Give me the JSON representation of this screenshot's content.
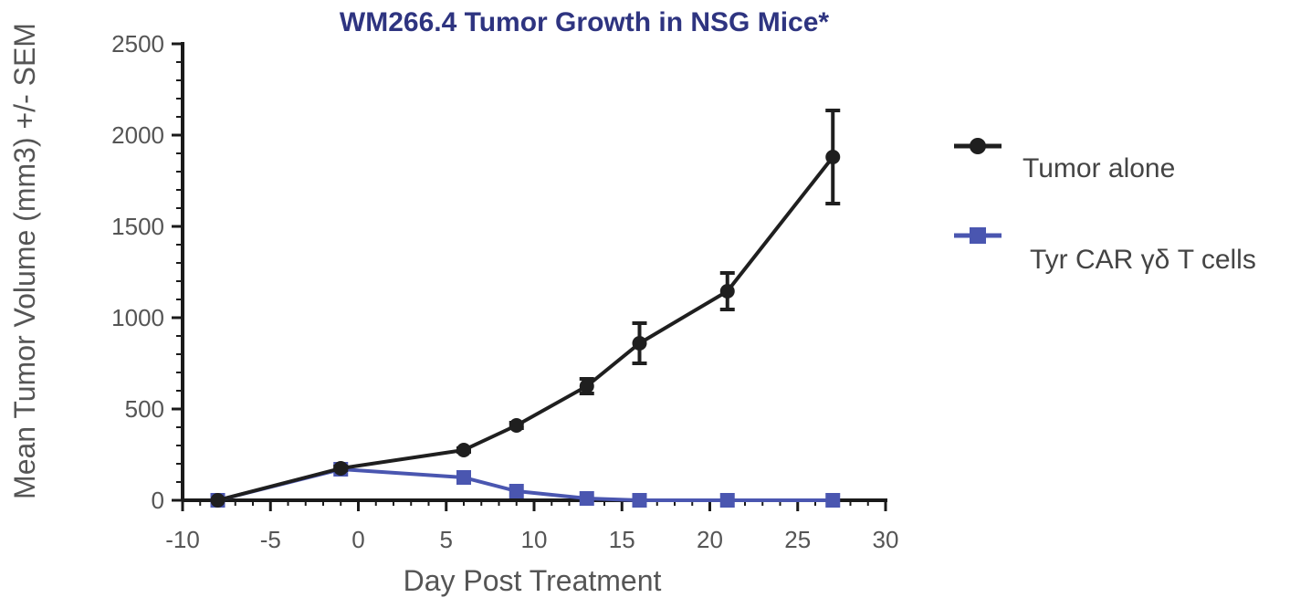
{
  "chart_data": {
    "type": "line",
    "title": "WM266.4 Tumor Growth in NSG Mice*",
    "xlabel": "Day Post Treatment",
    "ylabel": "Mean Tumor Volume (mm3) +/- SEM",
    "xlim": [
      -10,
      30
    ],
    "ylim": [
      0,
      2500
    ],
    "xticks": [
      "-10",
      "-5",
      "0",
      "5",
      "10",
      "15",
      "20",
      "25",
      "30"
    ],
    "yticks": [
      "0",
      "500",
      "1000",
      "1500",
      "2000",
      "2500"
    ],
    "grid": false,
    "legend_position": "right",
    "series": [
      {
        "name": "Tumor alone",
        "color": "#1f1f1f",
        "marker": "circle",
        "x": [
          -8,
          -1,
          6,
          9,
          13,
          16,
          21,
          27
        ],
        "y": [
          0,
          175,
          275,
          410,
          625,
          860,
          1145,
          1880
        ],
        "error": [
          0,
          10,
          10,
          15,
          40,
          110,
          100,
          255
        ]
      },
      {
        "name": "Tyr CAR γδ T cells",
        "color": "#4a56b0",
        "marker": "square",
        "x": [
          -8,
          -1,
          6,
          9,
          13,
          16,
          21,
          27
        ],
        "y": [
          0,
          170,
          125,
          50,
          10,
          0,
          0,
          0
        ],
        "error": [
          0,
          0,
          0,
          0,
          0,
          0,
          0,
          0
        ]
      }
    ]
  }
}
